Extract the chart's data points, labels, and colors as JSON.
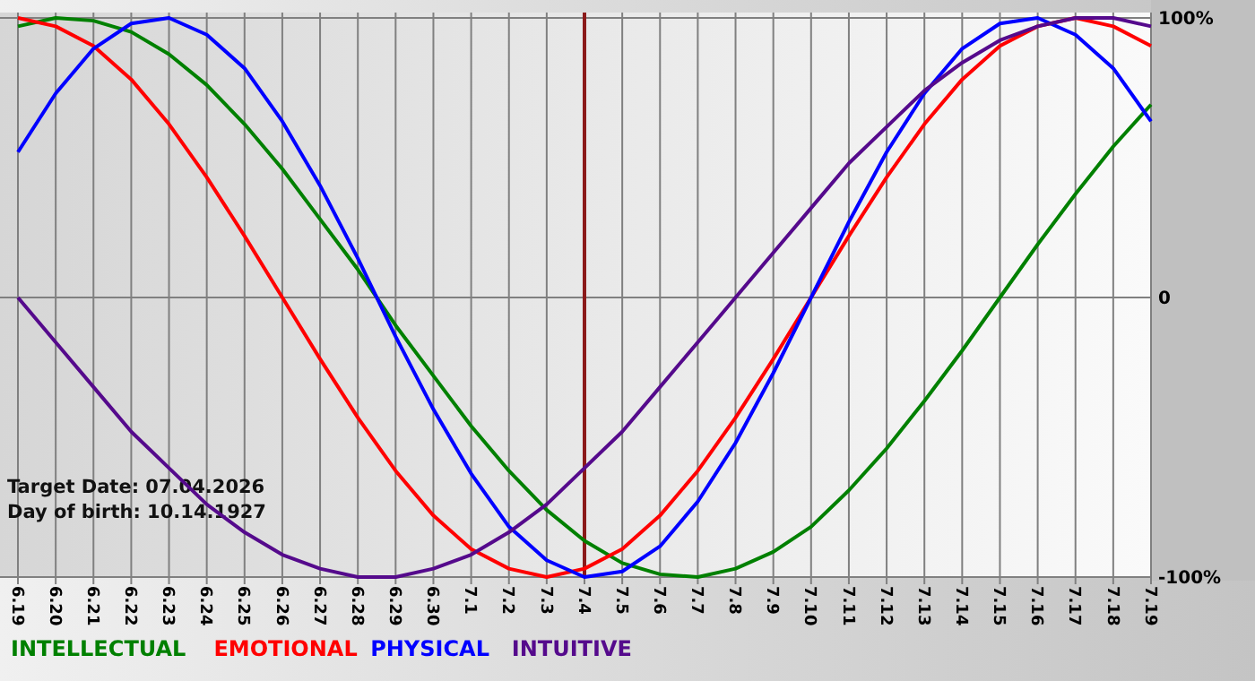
{
  "chart_data": {
    "type": "line",
    "categories": [
      "6.19",
      "6.20",
      "6.21",
      "6.22",
      "6.23",
      "6.24",
      "6.25",
      "6.26",
      "6.27",
      "6.28",
      "6.29",
      "6.30",
      "7.1",
      "7.2",
      "7.3",
      "7.4",
      "7.5",
      "7.6",
      "7.7",
      "7.8",
      "7.9",
      "7.10",
      "7.11",
      "7.12",
      "7.13",
      "7.14",
      "7.15",
      "7.16",
      "7.17",
      "7.18",
      "7.19"
    ],
    "series": [
      {
        "name": "INTELLECTUAL",
        "color": "#008000",
        "values": [
          97,
          100,
          99,
          95,
          87,
          76,
          62,
          46,
          28,
          10,
          -10,
          -28,
          -46,
          -62,
          -76,
          -87,
          -95,
          -99,
          -100,
          -97,
          -91,
          -82,
          -69,
          -54,
          -37,
          -19,
          0,
          19,
          37,
          54,
          69
        ]
      },
      {
        "name": "EMOTIONAL",
        "color": "#ff0000",
        "values": [
          100,
          97,
          90,
          78,
          62,
          43,
          22,
          0,
          -22,
          -43,
          -62,
          -78,
          -90,
          -97,
          -100,
          -97,
          -90,
          -78,
          -62,
          -43,
          -22,
          0,
          22,
          43,
          62,
          78,
          90,
          97,
          100,
          97,
          90
        ]
      },
      {
        "name": "PHYSICAL",
        "color": "#0000ff",
        "values": [
          52,
          73,
          89,
          98,
          100,
          94,
          82,
          63,
          40,
          14,
          -14,
          -40,
          -63,
          -82,
          -94,
          -100,
          -98,
          -89,
          -73,
          -52,
          -27,
          0,
          27,
          52,
          73,
          89,
          98,
          100,
          94,
          82,
          63
        ]
      },
      {
        "name": "INTUITIVE",
        "color": "#550a8c",
        "values": [
          0,
          -16,
          -32,
          -48,
          -61,
          -74,
          -84,
          -92,
          -97,
          -100,
          -100,
          -97,
          -92,
          -84,
          -74,
          -61,
          -48,
          -32,
          -16,
          0,
          16,
          32,
          48,
          61,
          74,
          84,
          92,
          97,
          100,
          100,
          97
        ]
      }
    ],
    "ylim": [
      -100,
      100
    ],
    "yticks": [
      {
        "value": 100,
        "label": "100%"
      },
      0,
      {
        "value": -100,
        "label": "-100%"
      }
    ],
    "ref_lines": [
      {
        "axis": "x",
        "value": "7.4",
        "color": "#8b1a1a"
      }
    ],
    "annotations": [
      "Target Date: 07.04.2026",
      "Day of birth: 10.14.1927"
    ],
    "grid": true,
    "legend": "bottom left",
    "marker": "none",
    "line_style": "solid"
  }
}
